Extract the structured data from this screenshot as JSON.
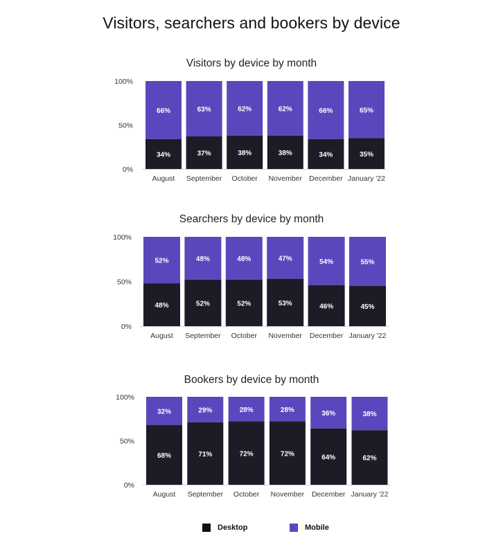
{
  "main_title": "Visitors, searchers and bookers by device",
  "colors": {
    "desktop": "#1b1c26",
    "mobile": "#5b47bd",
    "axis": "#d4d4d4",
    "tick_text": "#333333",
    "bar_label": "#ffffff"
  },
  "legend": [
    {
      "name": "Desktop",
      "color": "#111111"
    },
    {
      "name": "Mobile",
      "color": "#5b47bd"
    }
  ],
  "chart_data": [
    {
      "type": "bar",
      "stacked": true,
      "title": "Visitors by device by month",
      "categories": [
        "August",
        "September",
        "October",
        "November",
        "December",
        "January '22"
      ],
      "yticks": [
        "100%",
        "50%",
        "0%"
      ],
      "ylim": [
        0,
        100
      ],
      "series": [
        {
          "name": "Desktop",
          "values": [
            34,
            37,
            38,
            38,
            34,
            35
          ],
          "labels": [
            "34%",
            "37%",
            "38%",
            "38%",
            "34%",
            "35%"
          ]
        },
        {
          "name": "Mobile",
          "values": [
            66,
            63,
            62,
            62,
            66,
            65
          ],
          "labels": [
            "66%",
            "63%",
            "62%",
            "62%",
            "66%",
            "65%"
          ]
        }
      ]
    },
    {
      "type": "bar",
      "stacked": true,
      "title": "Searchers by device by month",
      "categories": [
        "August",
        "September",
        "October",
        "November",
        "December",
        "January '22"
      ],
      "yticks": [
        "100%",
        "50%",
        "0%"
      ],
      "ylim": [
        0,
        100
      ],
      "series": [
        {
          "name": "Desktop",
          "values": [
            48,
            52,
            52,
            53,
            46,
            45
          ],
          "labels": [
            "48%",
            "52%",
            "52%",
            "53%",
            "46%",
            "45%"
          ]
        },
        {
          "name": "Mobile",
          "values": [
            52,
            48,
            48,
            47,
            54,
            55
          ],
          "labels": [
            "52%",
            "48%",
            "48%",
            "47%",
            "54%",
            "55%"
          ]
        }
      ]
    },
    {
      "type": "bar",
      "stacked": true,
      "title": "Bookers by device by month",
      "categories": [
        "August",
        "September",
        "October",
        "November",
        "December",
        "January '22"
      ],
      "yticks": [
        "100%",
        "50%",
        "0%"
      ],
      "ylim": [
        0,
        100
      ],
      "series": [
        {
          "name": "Desktop",
          "values": [
            68,
            71,
            72,
            72,
            64,
            62
          ],
          "labels": [
            "68%",
            "71%",
            "72%",
            "72%",
            "64%",
            "62%"
          ]
        },
        {
          "name": "Mobile",
          "values": [
            32,
            29,
            28,
            28,
            36,
            38
          ],
          "labels": [
            "32%",
            "29%",
            "28%",
            "28%",
            "36%",
            "38%"
          ]
        }
      ]
    }
  ]
}
